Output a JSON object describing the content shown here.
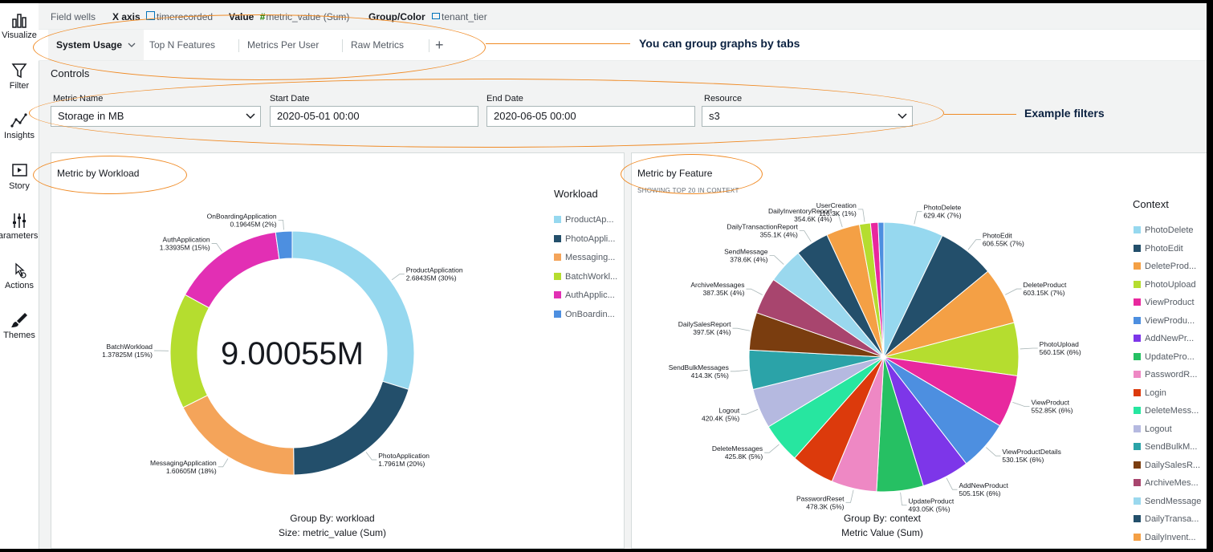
{
  "sidebar": {
    "items": [
      {
        "label": "Visualize",
        "icon": "bar-chart-icon"
      },
      {
        "label": "Filter",
        "icon": "funnel-icon"
      },
      {
        "label": "Insights",
        "icon": "line-insights-icon"
      },
      {
        "label": "Story",
        "icon": "play-icon"
      },
      {
        "label": "Parameters",
        "icon": "sliders-icon"
      },
      {
        "label": "Actions",
        "icon": "pointer-gear-icon"
      },
      {
        "label": "Themes",
        "icon": "brush-icon"
      }
    ]
  },
  "field_wells": {
    "label": "Field wells",
    "x_axis_label": "X axis",
    "x_axis_value": "timerecorded",
    "value_label": "Value",
    "value_value": "metric_value (Sum)",
    "group_label": "Group/Color",
    "group_value": "tenant_tier"
  },
  "tabs": [
    "System Usage",
    "Top N Features",
    "Metrics Per User",
    "Raw Metrics"
  ],
  "add_tab": "+",
  "controls": {
    "title": "Controls",
    "metric_name": {
      "label": "Metric Name",
      "value": "Storage in MB"
    },
    "start_date": {
      "label": "Start Date",
      "value": "2020-05-01 00:00"
    },
    "end_date": {
      "label": "End Date",
      "value": "2020-06-05 00:00"
    },
    "resource": {
      "label": "Resource",
      "value": "s3"
    }
  },
  "workload_panel": {
    "title": "Metric by Workload",
    "center_total": "9.00055M",
    "legend_title": "Workload",
    "legend": [
      "ProductAp...",
      "PhotoAppli...",
      "Messaging...",
      "BatchWorkl...",
      "AuthApplic...",
      "OnBoardin..."
    ],
    "footer_line1": "Group By: workload",
    "footer_line2": "Size: metric_value (Sum)"
  },
  "feature_panel": {
    "title": "Metric by Feature",
    "subtitle": "SHOWING TOP 20 IN CONTEXT",
    "legend_title": "Context",
    "legend": [
      "PhotoDelete",
      "PhotoEdit",
      "DeleteProd...",
      "PhotoUpload",
      "ViewProduct",
      "ViewProdu...",
      "AddNewPr...",
      "UpdatePro...",
      "PasswordR...",
      "Login",
      "DeleteMess...",
      "Logout",
      "SendBulkM...",
      "DailySalesR...",
      "ArchiveMes...",
      "SendMessage",
      "DailyTransa...",
      "DailyInvent..."
    ],
    "footer_line1": "Group By: context",
    "footer_line2": "Metric Value (Sum)"
  },
  "callouts": {
    "tabs": "You can group graphs by tabs",
    "filters": "Example filters"
  },
  "colors": {
    "accent_orange": "#f08a24",
    "callout_text": "#0b2140"
  },
  "chart_data": [
    {
      "type": "pie",
      "variant": "donut",
      "title": "Metric by Workload",
      "center_label": "9.00055M",
      "legend_title": "Workload",
      "slices": [
        {
          "name": "ProductApplication",
          "value_label": "2.68435M (30%)",
          "value": 2.68435,
          "color": "#96d8ef"
        },
        {
          "name": "PhotoApplication",
          "value_label": "1.7961M (20%)",
          "value": 1.7961,
          "color": "#234f6b"
        },
        {
          "name": "MessagingApplication",
          "value_label": "1.60605M (18%)",
          "value": 1.60605,
          "color": "#f4a45a"
        },
        {
          "name": "BatchWorkload",
          "value_label": "1.37825M (15%)",
          "value": 1.37825,
          "color": "#b5dd2f"
        },
        {
          "name": "AuthApplication",
          "value_label": "1.33935M (15%)",
          "value": 1.33935,
          "color": "#e22fb4"
        },
        {
          "name": "OnBoardingApplication",
          "value_label": "0.19645M (2%)",
          "value": 0.19645,
          "color": "#4d8fe0"
        }
      ],
      "xlabel": "Group By: workload",
      "ylabel": "Size: metric_value (Sum)"
    },
    {
      "type": "pie",
      "title": "Metric by Feature",
      "subtitle": "SHOWING TOP 20 IN CONTEXT",
      "legend_title": "Context",
      "slices": [
        {
          "name": "PhotoDelete",
          "value_label": "629.4K (7%)",
          "value": 629.4,
          "color": "#96d8ef"
        },
        {
          "name": "PhotoEdit",
          "value_label": "606.55K (7%)",
          "value": 606.55,
          "color": "#234f6b"
        },
        {
          "name": "DeleteProduct",
          "value_label": "603.15K (7%)",
          "value": 603.15,
          "color": "#f4a045"
        },
        {
          "name": "PhotoUpload",
          "value_label": "560.15K (6%)",
          "value": 560.15,
          "color": "#b5dd2f"
        },
        {
          "name": "ViewProduct",
          "value_label": "552.85K (6%)",
          "value": 552.85,
          "color": "#e8289e"
        },
        {
          "name": "ViewProductDetails",
          "value_label": "530.15K (6%)",
          "value": 530.15,
          "color": "#4d8fe0"
        },
        {
          "name": "AddNewProduct",
          "value_label": "505.15K (6%)",
          "value": 505.15,
          "color": "#7d36e9"
        },
        {
          "name": "UpdateProduct",
          "value_label": "493.05K (5%)",
          "value": 493.05,
          "color": "#26c063"
        },
        {
          "name": "PasswordReset",
          "value_label": "478.3K (5%)",
          "value": 478.3,
          "color": "#ee88c4"
        },
        {
          "name": "Login",
          "value_label": "",
          "value": 460.0,
          "color": "#dc3a0c"
        },
        {
          "name": "DeleteMessages",
          "value_label": "425.8K (5%)",
          "value": 425.8,
          "color": "#27e6a0"
        },
        {
          "name": "Logout",
          "value_label": "420.4K (5%)",
          "value": 420.4,
          "color": "#b5b9e0"
        },
        {
          "name": "SendBulkMessages",
          "value_label": "414.3K (5%)",
          "value": 414.3,
          "color": "#2ba3a8"
        },
        {
          "name": "DailySalesReport",
          "value_label": "397.5K (4%)",
          "value": 397.5,
          "color": "#7a3d0f"
        },
        {
          "name": "ArchiveMessages",
          "value_label": "387.35K (4%)",
          "value": 387.35,
          "color": "#a8456e"
        },
        {
          "name": "SendMessage",
          "value_label": "378.6K (4%)",
          "value": 378.6,
          "color": "#9ad8ee"
        },
        {
          "name": "DailyTransactionReport",
          "value_label": "355.1K (4%)",
          "value": 355.1,
          "color": "#234f6b"
        },
        {
          "name": "DailyInventoryReport",
          "value_label": "354.6K (4%)",
          "value": 354.6,
          "color": "#f4a045"
        },
        {
          "name": "UserCreation",
          "value_label": "116.3K (1%)",
          "value": 116.3,
          "color": "#b5dd2f"
        },
        {
          "name": "",
          "value_label": "",
          "value": 80.0,
          "color": "#e8289e"
        },
        {
          "name": "",
          "value_label": "",
          "value": 60.0,
          "color": "#4d8fe0"
        }
      ],
      "xlabel": "Group By: context",
      "ylabel": "Metric Value (Sum)"
    }
  ]
}
